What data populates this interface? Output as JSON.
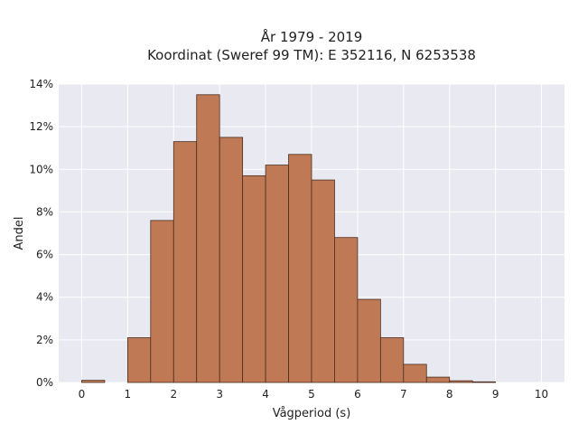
{
  "chart_data": {
    "type": "bar",
    "title": "År 1979 - 2019",
    "subtitle": "Koordinat (Sweref 99 TM): E 352116, N 6253538",
    "xlabel": "Vågperiod (s)",
    "ylabel": "Andel",
    "xlim": [
      -0.5,
      10.5
    ],
    "ylim": [
      0,
      14
    ],
    "x_ticks": [
      0,
      1,
      2,
      3,
      4,
      5,
      6,
      7,
      8,
      9,
      10
    ],
    "x_tick_labels": [
      "0",
      "1",
      "2",
      "3",
      "4",
      "5",
      "6",
      "7",
      "8",
      "9",
      "10"
    ],
    "y_ticks": [
      0,
      2,
      4,
      6,
      8,
      10,
      12,
      14
    ],
    "y_tick_labels": [
      "0%",
      "2%",
      "4%",
      "6%",
      "8%",
      "10%",
      "12%",
      "14%"
    ],
    "bin_width": 0.5,
    "bins": [
      {
        "start": 0.0,
        "value": 0.1
      },
      {
        "start": 0.5,
        "value": 0.0
      },
      {
        "start": 1.0,
        "value": 2.1
      },
      {
        "start": 1.5,
        "value": 7.6
      },
      {
        "start": 2.0,
        "value": 11.3
      },
      {
        "start": 2.5,
        "value": 13.5
      },
      {
        "start": 3.0,
        "value": 11.5
      },
      {
        "start": 3.5,
        "value": 9.7
      },
      {
        "start": 4.0,
        "value": 10.2
      },
      {
        "start": 4.5,
        "value": 10.7
      },
      {
        "start": 5.0,
        "value": 9.5
      },
      {
        "start": 5.5,
        "value": 6.8
      },
      {
        "start": 6.0,
        "value": 3.9
      },
      {
        "start": 6.5,
        "value": 2.1
      },
      {
        "start": 7.0,
        "value": 0.85
      },
      {
        "start": 7.5,
        "value": 0.25
      },
      {
        "start": 8.0,
        "value": 0.08
      },
      {
        "start": 8.5,
        "value": 0.03
      }
    ],
    "grid": true,
    "colors": {
      "bar_fill": "#bf7a55",
      "bar_edge": "#4a2c1f",
      "plot_background": "#e9e9f1",
      "grid": "#ffffff"
    }
  }
}
